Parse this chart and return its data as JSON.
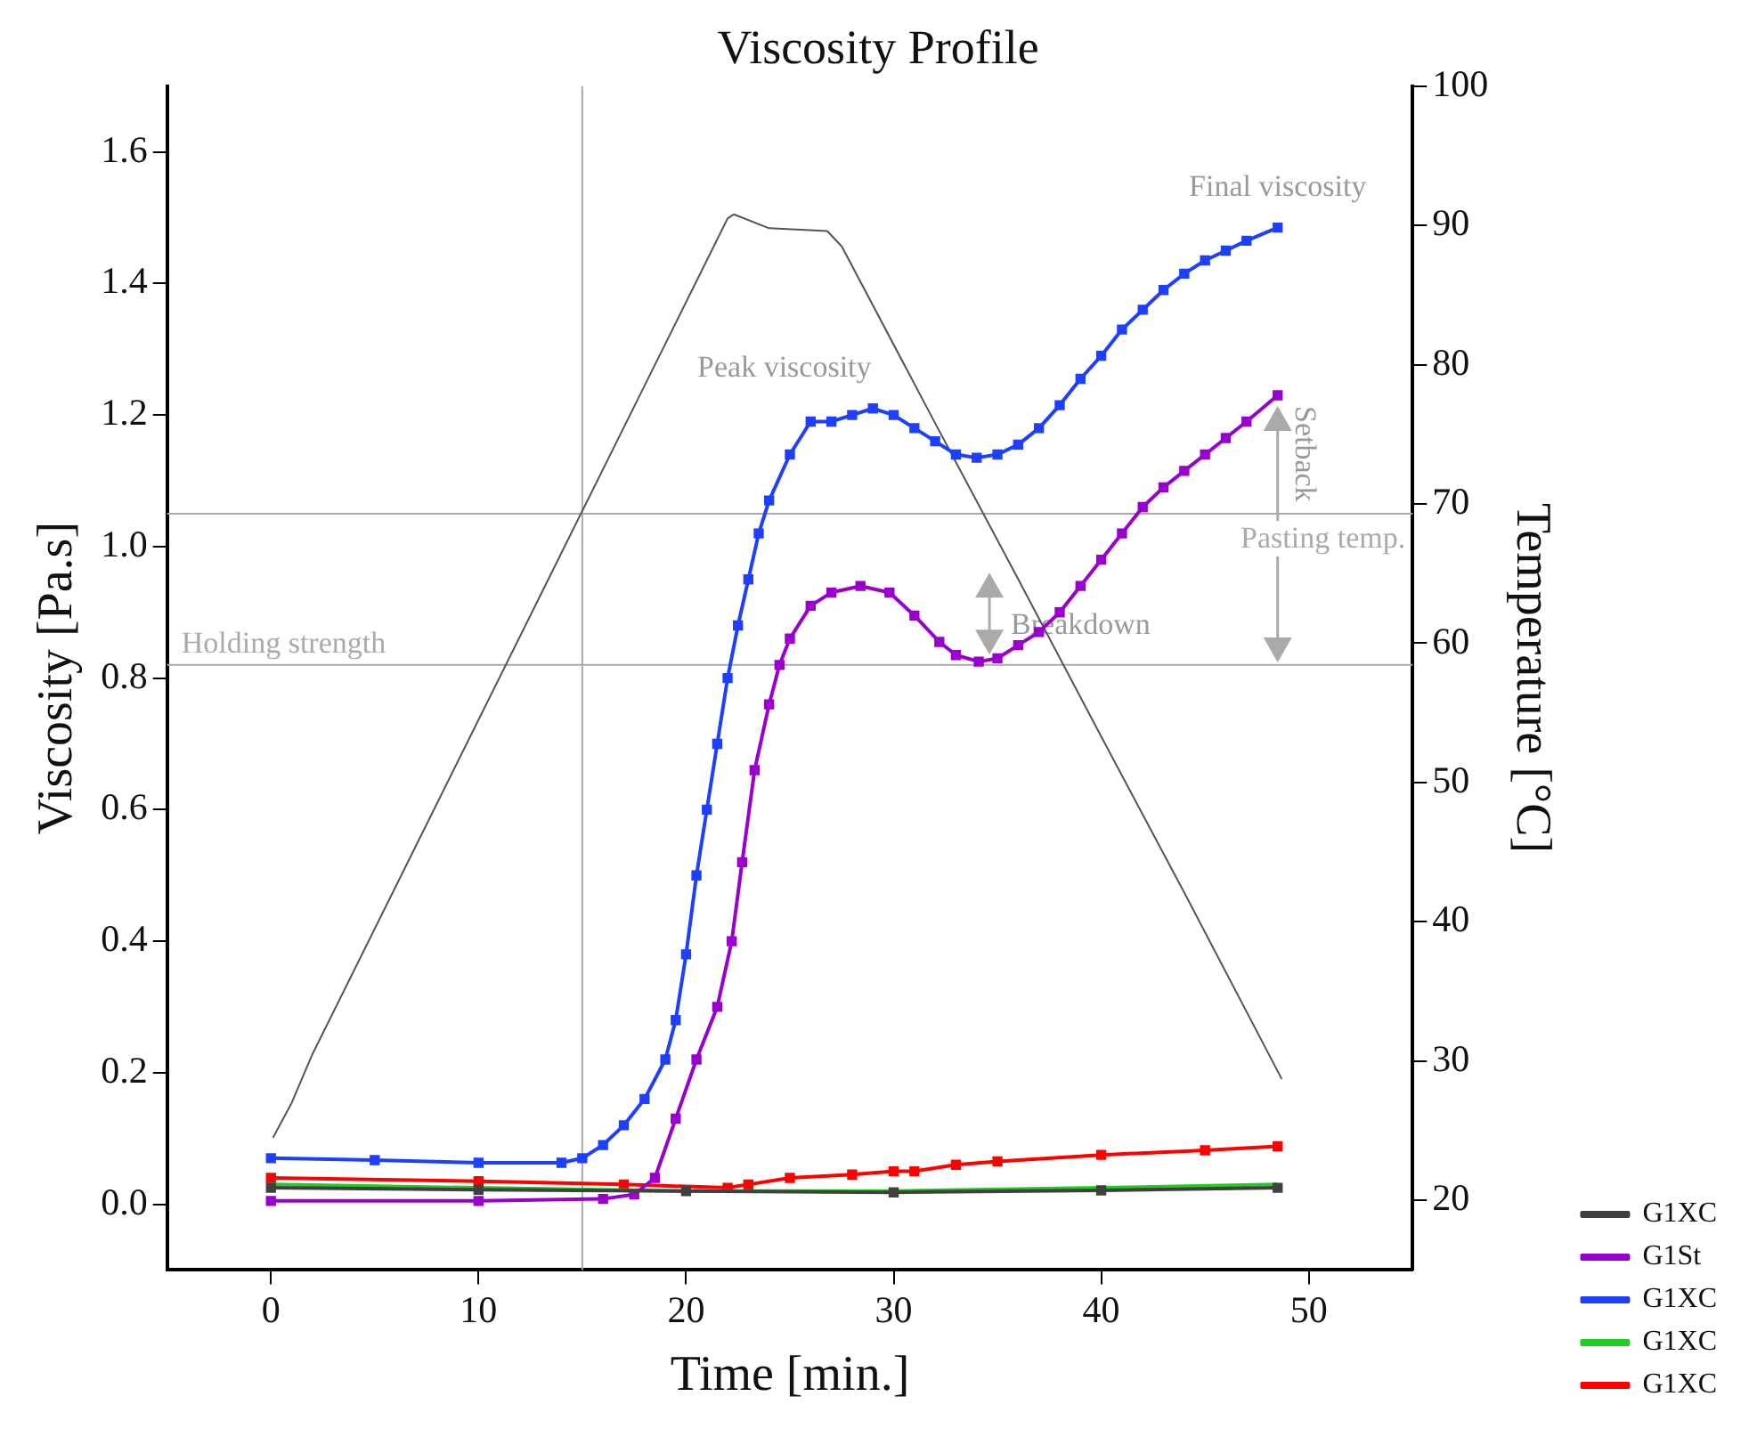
{
  "chart_data": {
    "type": "line",
    "title": "Viscosity Profile",
    "xlabel": "Time [min.]",
    "ylabel": "Viscosity [Pa.s]",
    "y2label": "Temperature [°C]",
    "xlim": [
      -5,
      55
    ],
    "xticks": [
      0,
      10,
      20,
      30,
      40,
      50
    ],
    "ylim": [
      -0.1,
      1.7
    ],
    "yticks": [
      {
        "value": 0,
        "label": "0.0"
      },
      {
        "value": 0.2,
        "label": "0.2"
      },
      {
        "value": 0.4,
        "label": "0.4"
      },
      {
        "value": 0.6,
        "label": "0.6"
      },
      {
        "value": 0.8,
        "label": "0.8"
      },
      {
        "value": 1.0,
        "label": "1.0"
      },
      {
        "value": 1.2,
        "label": "1.2"
      },
      {
        "value": 1.4,
        "label": "1.4"
      },
      {
        "value": 1.6,
        "label": "1.6"
      }
    ],
    "y2lim": [
      15,
      100
    ],
    "y2ticks": [
      20,
      30,
      40,
      50,
      60,
      70,
      80,
      90,
      100
    ],
    "grid": false,
    "legend": "bottom right",
    "marker": "square",
    "line_style": "solid",
    "series": [
      {
        "type": "line",
        "axis": "y2",
        "color": "#555555",
        "marker": "none",
        "x": [
          0.1,
          1,
          2,
          6,
          10,
          14,
          18,
          22,
          22.3,
          24,
          26.8,
          27.5,
          32,
          36,
          40,
          44,
          48.7
        ],
        "values": [
          24.5,
          27,
          30.5,
          42.5,
          54.5,
          66.5,
          78.5,
          90.5,
          90.8,
          89.8,
          89.6,
          88.5,
          75.8,
          64.6,
          53.3,
          42.1,
          28.7
        ]
      },
      {
        "name": "G1XC",
        "color": "#404040",
        "x": [
          0,
          10,
          20,
          30,
          40,
          48.5
        ],
        "values": [
          0.025,
          0.022,
          0.02,
          0.018,
          0.021,
          0.025
        ]
      },
      {
        "name": "G1St",
        "color": "#9900cc",
        "x": [
          0,
          10,
          16,
          17.5,
          18.5,
          19.5,
          20.5,
          21.5,
          22.2,
          22.7,
          23.3,
          24,
          24.5,
          25,
          26,
          27,
          28.4,
          29.8,
          31,
          32.2,
          33,
          34.1,
          35,
          36,
          37,
          38,
          39,
          40,
          41,
          42,
          43,
          44,
          45,
          46,
          47,
          48.5
        ],
        "values": [
          0.005,
          0.005,
          0.008,
          0.015,
          0.04,
          0.13,
          0.22,
          0.3,
          0.4,
          0.52,
          0.66,
          0.76,
          0.82,
          0.86,
          0.91,
          0.93,
          0.94,
          0.93,
          0.895,
          0.855,
          0.835,
          0.825,
          0.83,
          0.85,
          0.87,
          0.9,
          0.94,
          0.98,
          1.02,
          1.06,
          1.09,
          1.115,
          1.14,
          1.165,
          1.19,
          1.23
        ]
      },
      {
        "name": "G1XC",
        "color": "#1f3fff",
        "x": [
          0,
          5,
          10,
          14,
          15,
          16,
          17,
          18,
          19,
          19.5,
          20,
          20.5,
          21,
          21.5,
          22,
          22.5,
          23,
          23.5,
          24,
          25,
          26,
          27,
          28,
          29,
          30,
          31,
          32,
          33,
          34,
          35,
          36,
          37,
          38,
          39,
          40,
          41,
          42,
          43,
          44,
          45,
          46,
          47,
          48.5
        ],
        "values": [
          0.07,
          0.067,
          0.063,
          0.063,
          0.07,
          0.09,
          0.12,
          0.16,
          0.22,
          0.28,
          0.38,
          0.5,
          0.6,
          0.7,
          0.8,
          0.88,
          0.95,
          1.02,
          1.07,
          1.14,
          1.19,
          1.19,
          1.2,
          1.21,
          1.2,
          1.18,
          1.16,
          1.14,
          1.135,
          1.14,
          1.155,
          1.18,
          1.215,
          1.255,
          1.29,
          1.33,
          1.36,
          1.39,
          1.415,
          1.435,
          1.45,
          1.465,
          1.485
        ]
      },
      {
        "name": "G1XC",
        "color": "#22cc22",
        "marker": "none",
        "x": [
          0,
          10,
          20,
          30,
          40,
          48.5
        ],
        "values": [
          0.03,
          0.025,
          0.02,
          0.02,
          0.025,
          0.03
        ]
      },
      {
        "name": "G1XC",
        "color": "#ff0000",
        "x": [
          0,
          10,
          17,
          22,
          23,
          25,
          28,
          30,
          31,
          33,
          35,
          40,
          45,
          48.5
        ],
        "values": [
          0.04,
          0.035,
          0.03,
          0.025,
          0.03,
          0.04,
          0.045,
          0.05,
          0.05,
          0.06,
          0.065,
          0.075,
          0.082,
          0.088
        ]
      }
    ],
    "ref_lines": [
      {
        "axis": "y",
        "value": 0.82,
        "label": "Holding strength",
        "color": "#aaaaaa"
      },
      {
        "axis": "y",
        "value": 1.05,
        "label": "Pasting temp.",
        "color": "#aaaaaa"
      },
      {
        "axis": "x",
        "value": 15,
        "color": "#aaaaaa"
      }
    ],
    "annotations": [
      {
        "text": "Peak viscosity",
        "x": 28.5,
        "y": 1.21
      },
      {
        "text": "Final viscosity",
        "x": 48.5,
        "y": 1.485
      },
      {
        "text": "Breakdown",
        "x": 34.1,
        "y": 0.825
      },
      {
        "text": "Setback",
        "x": 48.5,
        "y": 1.23
      }
    ]
  }
}
